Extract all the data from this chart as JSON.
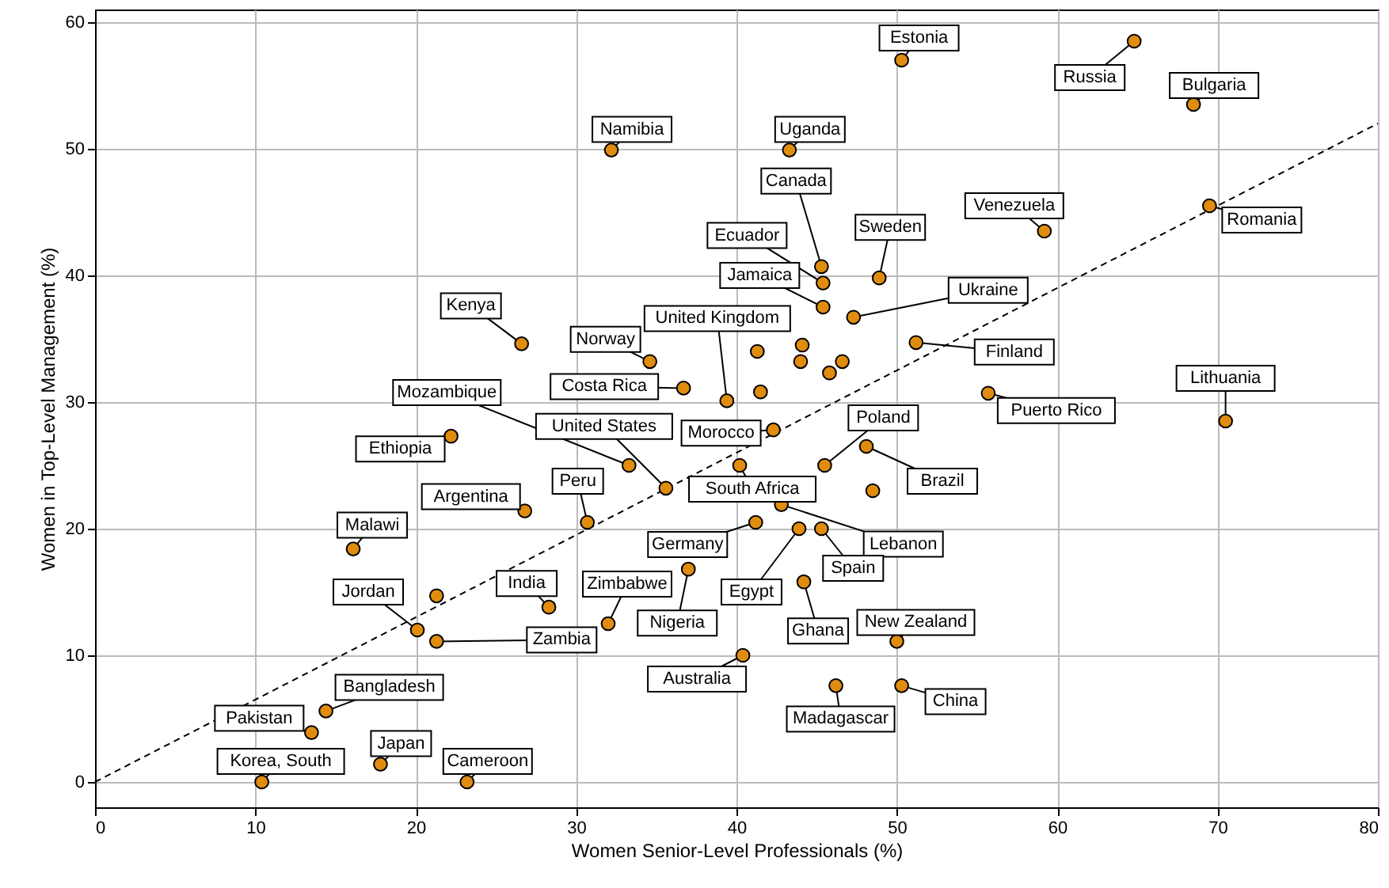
{
  "chart_data": {
    "type": "scatter",
    "xlabel": "Women Senior-Level Professionals (%)",
    "ylabel": "Women in Top-Level Management (%)",
    "xlim": [
      0,
      80
    ],
    "ylim": [
      -2,
      61
    ],
    "xticks": [
      0,
      10,
      20,
      30,
      40,
      50,
      60,
      70,
      80
    ],
    "yticks": [
      0,
      10,
      20,
      30,
      40,
      50,
      60
    ],
    "grid": true,
    "series": [
      {
        "marker": "circle",
        "color": "#e08c0f",
        "x": [
          50.3,
          64.8,
          68.5,
          32.2,
          43.3,
          59.2,
          69.5,
          45.3,
          45.4,
          45.4,
          48.9,
          47.3,
          51.2,
          26.6,
          34.6,
          39.4,
          44.1,
          41.3,
          44.0,
          46.6,
          45.8,
          36.7,
          41.5,
          55.7,
          70.5,
          22.2,
          33.3,
          35.6,
          42.3,
          45.5,
          48.1,
          48.5,
          40.2,
          42.8,
          30.7,
          41.2,
          43.9,
          45.3,
          26.8,
          16.1,
          37.0,
          32.0,
          44.2,
          50.0,
          40.4,
          46.2,
          50.3,
          28.3,
          21.3,
          20.1,
          21.3,
          14.4,
          13.5,
          17.8,
          10.4,
          23.2
        ],
        "values": [
          57.0,
          58.5,
          53.5,
          49.9,
          49.9,
          43.5,
          45.5,
          40.7,
          39.4,
          37.5,
          39.8,
          36.7,
          34.7,
          34.6,
          33.2,
          30.1,
          34.5,
          34.0,
          33.2,
          33.2,
          32.3,
          31.1,
          30.8,
          30.7,
          28.5,
          27.3,
          25.0,
          23.2,
          27.8,
          25.0,
          26.5,
          23.0,
          25.0,
          21.9,
          20.5,
          20.5,
          20.0,
          20.0,
          21.4,
          18.4,
          16.8,
          12.5,
          15.8,
          11.1,
          10.0,
          7.6,
          7.6,
          13.8,
          14.7,
          12.0,
          11.1,
          5.6,
          3.9,
          1.4,
          0,
          0
        ],
        "value_labels": [
          "Estonia",
          "Russia",
          "Bulgaria",
          "Namibia",
          "Uganda",
          "Venezuela",
          "Romania",
          "Canada",
          "Ecuador",
          "Jamaica",
          "Sweden",
          "Ukraine",
          "Finland",
          "Kenya",
          "Norway",
          "United Kingdom",
          null,
          null,
          null,
          null,
          null,
          "Costa Rica",
          null,
          "Puerto Rico",
          "Lithuania",
          "Ethiopia",
          "Mozambique",
          "United States",
          "Morocco",
          "Poland",
          "Brazil",
          null,
          "South Africa",
          "Lebanon",
          "Peru",
          "Germany",
          "Egypt",
          "Spain",
          "Argentina",
          "Malawi",
          "Nigeria",
          "Zimbabwe",
          "Ghana",
          "New Zealand",
          "Australia",
          "Madagascar",
          "China",
          "India",
          null,
          "Jordan",
          "Zambia",
          "Bangladesh",
          "Pakistan",
          "Japan",
          "Korea, South",
          "Cameroon"
        ]
      },
      {
        "type": "line",
        "color": "#000000",
        "x": [
          0,
          80
        ],
        "values": [
          0,
          52
        ],
        "line_style": "dashed",
        "marker": "none"
      }
    ]
  }
}
